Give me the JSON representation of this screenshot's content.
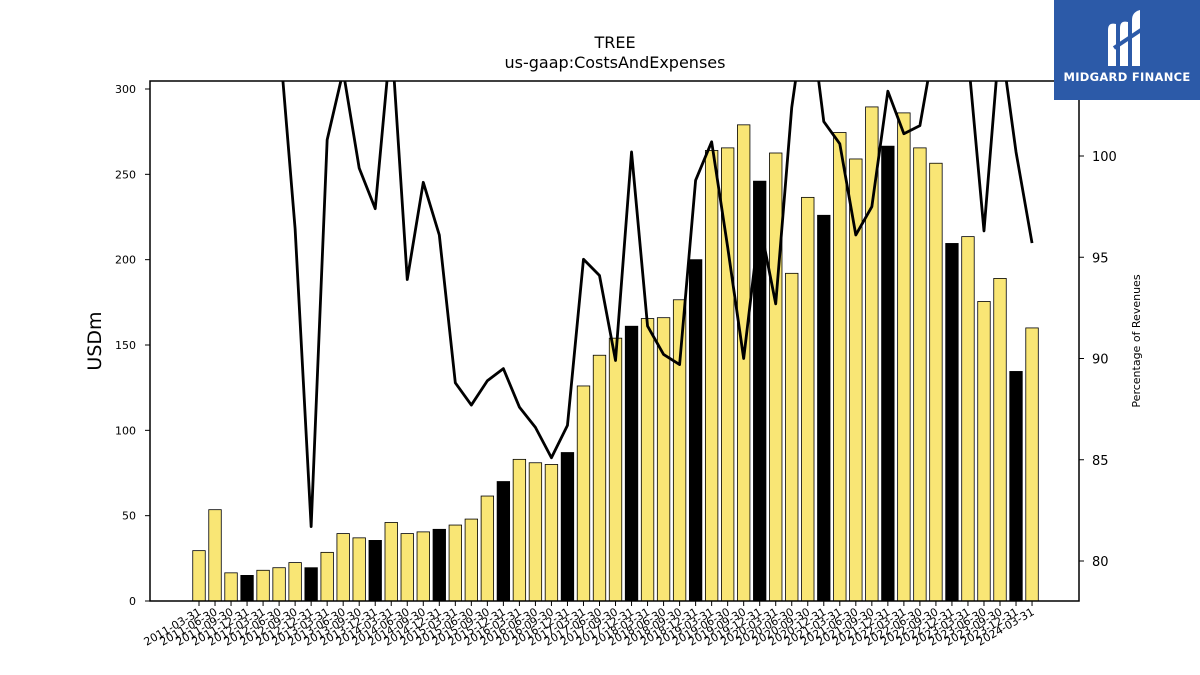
{
  "chart_data": {
    "type": "bar",
    "title": "TREE",
    "subtitle": "us-gaap:CostsAndExpenses",
    "ylabel": "USDm",
    "y2label": "Percentage of Revenues",
    "ylim": [
      0,
      300
    ],
    "y2lim": [
      78,
      104
    ],
    "yticks": [
      "0",
      "50",
      "100",
      "150",
      "200",
      "250",
      "300"
    ],
    "y2ticks": [
      "80",
      "85",
      "90",
      "95",
      "100"
    ],
    "categories": [
      "2011-03-31",
      "2011-06-30",
      "2011-09-30",
      "2011-12-31",
      "2012-03-31",
      "2012-06-30",
      "2012-09-30",
      "2012-12-31",
      "2013-03-31",
      "2013-06-30",
      "2013-09-30",
      "2013-12-31",
      "2014-03-31",
      "2014-06-30",
      "2014-09-30",
      "2014-12-31",
      "2015-03-31",
      "2015-06-30",
      "2015-09-30",
      "2015-12-31",
      "2016-03-31",
      "2016-06-30",
      "2016-09-30",
      "2016-12-31",
      "2017-03-31",
      "2017-06-30",
      "2017-09-30",
      "2017-12-31",
      "2018-03-31",
      "2018-06-30",
      "2018-09-30",
      "2018-12-31",
      "2019-03-31",
      "2019-06-30",
      "2019-09-30",
      "2019-12-31",
      "2020-03-31",
      "2020-06-30",
      "2020-09-30",
      "2020-12-31",
      "2021-03-31",
      "2021-06-30",
      "2021-09-30",
      "2021-12-31",
      "2022-03-31",
      "2022-06-30",
      "2022-09-30",
      "2022-12-31",
      "2023-03-31",
      "2023-06-30",
      "2023-09-30",
      "2023-12-31",
      "2024-03-31"
    ],
    "xtick_labels": [
      "2011-03-31",
      "2011-06-30",
      "2011-09-30",
      "2011-12-31",
      "2012-03-31",
      "2012-06-30",
      "2012-09-30",
      "2012-12-31",
      "2013-03-31",
      "2013-06-30",
      "2013-09-30",
      "2013-12-31",
      "2014-03-31",
      "2014-06-30",
      "2014-09-30",
      "2014-12-31",
      "2015-03-31",
      "2015-06-30",
      "2015-09-30",
      "2015-12-31",
      "2016-03-31",
      "2016-06-30",
      "2016-09-30",
      "2016-12-31",
      "2017-03-31",
      "2017-06-30",
      "2017-09-30",
      "2017-12-31",
      "2018-03-31",
      "2018-06-30",
      "2018-09-30",
      "2018-12-31",
      "2019-03-31",
      "2019-06-30",
      "2019-09-30",
      "2019-12-31",
      "2020-03-31",
      "2020-06-30",
      "2020-09-30",
      "2020-12-31",
      "2021-03-31",
      "2021-06-30",
      "2021-09-30",
      "2021-12-31",
      "2022-03-31",
      "2022-06-30",
      "2022-09-30",
      "2022-12-31",
      "2023-03-31",
      "2023-06-30",
      "2023-09-30",
      "2023-12-31",
      "2024-03-31"
    ],
    "series": [
      {
        "type": "bar",
        "axis": "left",
        "values": [
          29.5,
          53.5,
          16.5,
          15,
          18,
          19.5,
          22.5,
          19.5,
          28.5,
          39.5,
          37,
          35.5,
          46,
          39.5,
          40.5,
          42,
          44.5,
          48,
          61.5,
          70,
          83,
          81,
          80,
          87,
          126,
          144,
          154,
          161,
          165.5,
          166,
          176.5,
          200,
          264,
          265.5,
          279,
          246,
          262.5,
          192,
          236.5,
          226,
          274.5,
          259,
          289.5,
          266.5,
          286,
          265.5,
          256.5,
          209.5,
          213.5,
          175.5,
          189,
          134.5,
          160
        ],
        "highlight": [
          false,
          false,
          false,
          true,
          false,
          false,
          false,
          true,
          false,
          false,
          false,
          true,
          false,
          false,
          false,
          true,
          false,
          false,
          false,
          true,
          false,
          false,
          false,
          true,
          false,
          false,
          false,
          true,
          false,
          false,
          false,
          true,
          false,
          false,
          false,
          true,
          false,
          false,
          false,
          true,
          false,
          false,
          false,
          true,
          false,
          false,
          false,
          true,
          false,
          false,
          false,
          true,
          false
        ]
      },
      {
        "type": "line",
        "axis": "right",
        "values": [
          null,
          null,
          null,
          null,
          null,
          106,
          96.4,
          81.7,
          100.8,
          104.2,
          99.4,
          97.4,
          106,
          93.9,
          98.7,
          96.1,
          88.8,
          87.7,
          88.9,
          89.5,
          87.6,
          86.6,
          85.1,
          86.7,
          94.9,
          94.1,
          89.9,
          100.2,
          91.6,
          90.2,
          89.7,
          98.8,
          100.7,
          95.5,
          90,
          96.7,
          92.7,
          102.4,
          108,
          101.7,
          100.6,
          96.1,
          97.5,
          103.2,
          101.1,
          101.5,
          106,
          104,
          105,
          96.3,
          106,
          100.2,
          95.7
        ]
      }
    ],
    "colors": {
      "bar": "#f9e675",
      "bar_highlight": "#000000",
      "line": "#000000"
    }
  },
  "logo": {
    "text": "MIDGARD FINANCE",
    "background": "#2c5aa8"
  }
}
